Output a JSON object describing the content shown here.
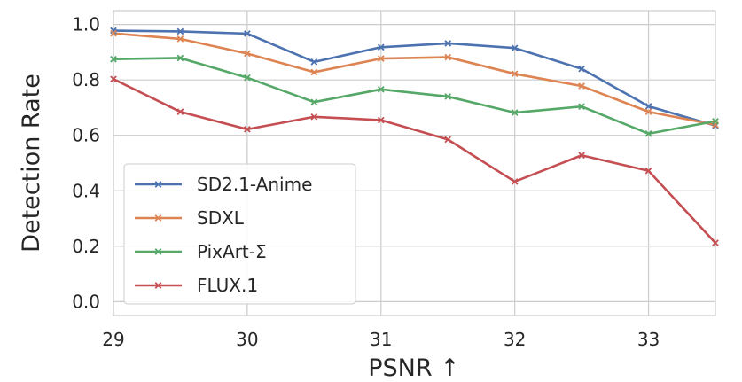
{
  "chart_data": {
    "type": "line",
    "xlabel": "PSNR ↑",
    "ylabel": "Detection Rate",
    "xlim": [
      29,
      33.5
    ],
    "ylim": [
      -0.05,
      1.05
    ],
    "xticks": [
      29,
      30,
      31,
      32,
      33
    ],
    "xtick_labels": [
      "29",
      "30",
      "31",
      "32",
      "33"
    ],
    "yticks": [
      0.0,
      0.2,
      0.4,
      0.6,
      0.8,
      1.0
    ],
    "ytick_labels": [
      "0.0",
      "0.2",
      "0.4",
      "0.6",
      "0.8",
      "1.0"
    ],
    "grid": true,
    "legend_position": "lower-left",
    "marker": "x",
    "x": [
      29.0,
      29.5,
      30.0,
      30.5,
      31.0,
      31.5,
      32.0,
      32.5,
      33.0,
      33.5
    ],
    "series": [
      {
        "name": "SD2.1-Anime",
        "color": "#4c72b0",
        "values": [
          0.978,
          0.975,
          0.967,
          0.865,
          0.918,
          0.932,
          0.915,
          0.84,
          0.705,
          0.635
        ]
      },
      {
        "name": "SDXL",
        "color": "#dd8452",
        "values": [
          0.968,
          0.948,
          0.895,
          0.828,
          0.877,
          0.882,
          0.822,
          0.778,
          0.685,
          0.638
        ]
      },
      {
        "name": "PixArt-Σ",
        "color": "#55a868",
        "values": [
          0.875,
          0.879,
          0.808,
          0.72,
          0.766,
          0.74,
          0.682,
          0.704,
          0.606,
          0.651
        ]
      },
      {
        "name": "FLUX.1",
        "color": "#c44e52",
        "values": [
          0.803,
          0.685,
          0.622,
          0.667,
          0.655,
          0.585,
          0.433,
          0.528,
          0.472,
          0.212
        ]
      }
    ]
  }
}
